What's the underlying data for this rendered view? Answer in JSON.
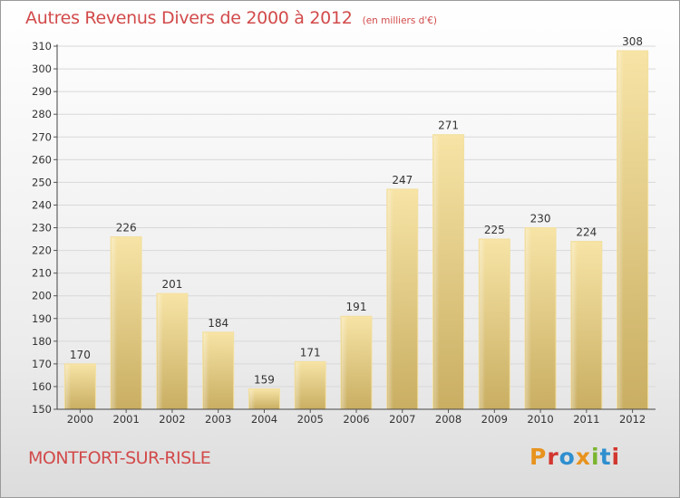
{
  "header": {
    "title": "Autres Revenus Divers de 2000 à 2012",
    "subtitle": "(en milliers d'€)"
  },
  "footer": {
    "city": "MONTFORT-SUR-RISLE",
    "brand": "Proxiti",
    "brand_colors": [
      "#e8931f",
      "#d2362f",
      "#2f8fcf",
      "#e8931f",
      "#7ab52f",
      "#2f8fcf",
      "#d2362f"
    ]
  },
  "colors": {
    "title": "#d24a4a",
    "bar_light": "#f7e4a6",
    "bar_dark": "#c9ae62",
    "grid": "#d8d8d8"
  },
  "chart_data": {
    "type": "bar",
    "title": "Autres Revenus Divers de 2000 à 2012",
    "subtitle": "(en milliers d'€)",
    "categories": [
      "2000",
      "2001",
      "2002",
      "2003",
      "2004",
      "2005",
      "2006",
      "2007",
      "2008",
      "2009",
      "2010",
      "2011",
      "2012"
    ],
    "values": [
      170,
      226,
      201,
      184,
      159,
      171,
      191,
      247,
      271,
      225,
      230,
      224,
      308
    ],
    "ylim": [
      150,
      310
    ],
    "ytick_step": 10,
    "grid": true,
    "data_labels": true
  }
}
